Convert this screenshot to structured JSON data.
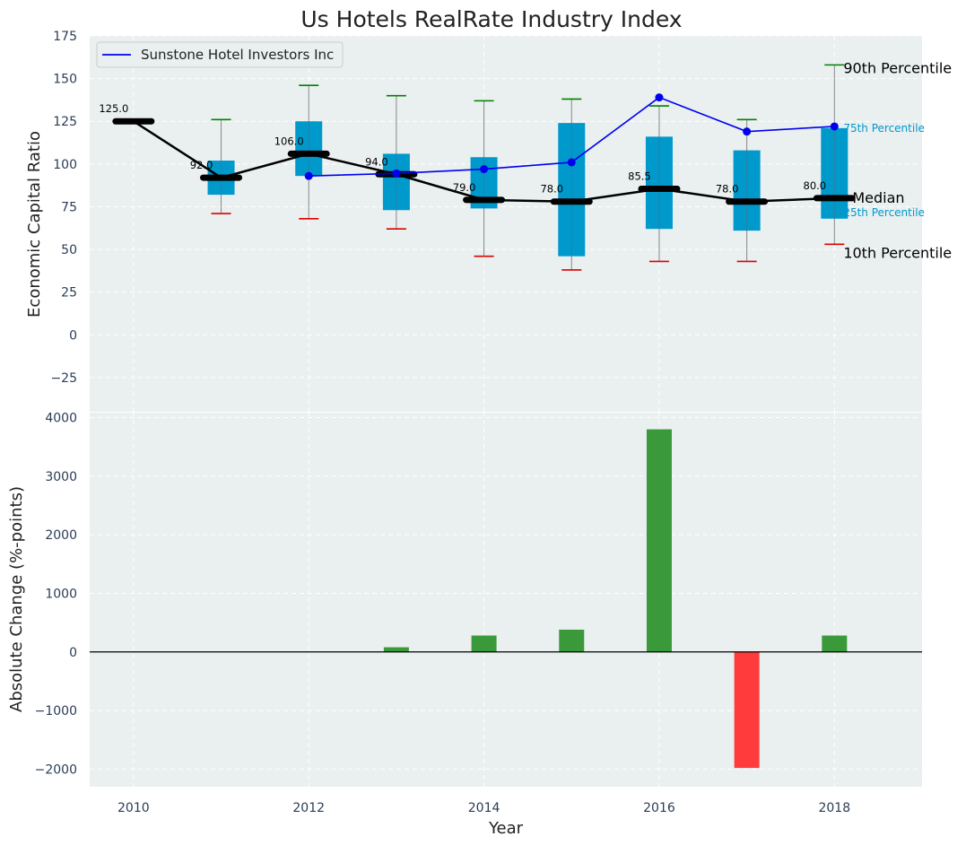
{
  "colors": {
    "background": "#eaeff0",
    "grid": "#ffffff",
    "box": "#0099cc",
    "median": "#000000",
    "company": "#0000ee",
    "whisker": "#888888",
    "p90_cap": "#008000",
    "p10_cap": "#dd0000",
    "positive_bar": "#3a9a3a",
    "negative_bar": "#ff3b3b",
    "tick_text": "#2b3d55"
  },
  "chart_data": [
    {
      "type": "box",
      "title": "Us Hotels RealRate Industry Index",
      "ylabel": "Economic Capital Ratio",
      "xlim": [
        2009.5,
        2019
      ],
      "ylim": [
        -45,
        175
      ],
      "yticks": [
        -25,
        0,
        25,
        50,
        75,
        100,
        125,
        150,
        175
      ],
      "years": [
        2010,
        2011,
        2012,
        2013,
        2014,
        2015,
        2016,
        2017,
        2018
      ],
      "median": [
        125.0,
        92.0,
        106.0,
        94.0,
        79.0,
        78.0,
        85.5,
        78.0,
        80.0
      ],
      "median_labels": [
        "125.0",
        "92.0",
        "106.0",
        "94.0",
        "79.0",
        "78.0",
        "85.5",
        "78.0",
        "80.0"
      ],
      "q1": [
        null,
        82,
        93,
        73,
        74,
        46,
        62,
        61,
        68
      ],
      "q3": [
        null,
        102,
        125,
        106,
        104,
        124,
        116,
        108,
        121
      ],
      "p10": [
        null,
        71,
        68,
        62,
        46,
        38,
        43,
        43,
        53
      ],
      "p90": [
        null,
        126,
        146,
        140,
        137,
        138,
        134,
        126,
        158
      ],
      "company_series": {
        "name": "Sunstone Hotel Investors Inc",
        "x": [
          2012,
          2013,
          2014,
          2015,
          2016,
          2017,
          2018
        ],
        "y": [
          93,
          94.5,
          97,
          101,
          139,
          119,
          122
        ]
      },
      "legend_location": "top-left",
      "annotations": {
        "p90": "90th Percentile",
        "p75": "75th Percentile",
        "median": "Median",
        "p25": "25th Percentile",
        "p10": "10th Percentile"
      }
    },
    {
      "type": "bar",
      "xlabel": "Year",
      "ylabel": "Absolute Change (%-points)",
      "ylim": [
        -2300,
        4100
      ],
      "yticks": [
        -2000,
        -1000,
        0,
        1000,
        2000,
        3000,
        4000
      ],
      "ytick_labels": [
        "−2000",
        "−1000",
        "0",
        "1000",
        "2000",
        "3000",
        "4000"
      ],
      "years": [
        2013,
        2014,
        2015,
        2016,
        2017,
        2018
      ],
      "values": [
        80,
        280,
        380,
        3800,
        -1980,
        280
      ],
      "xticks": [
        2010,
        2012,
        2014,
        2016,
        2018
      ]
    }
  ]
}
